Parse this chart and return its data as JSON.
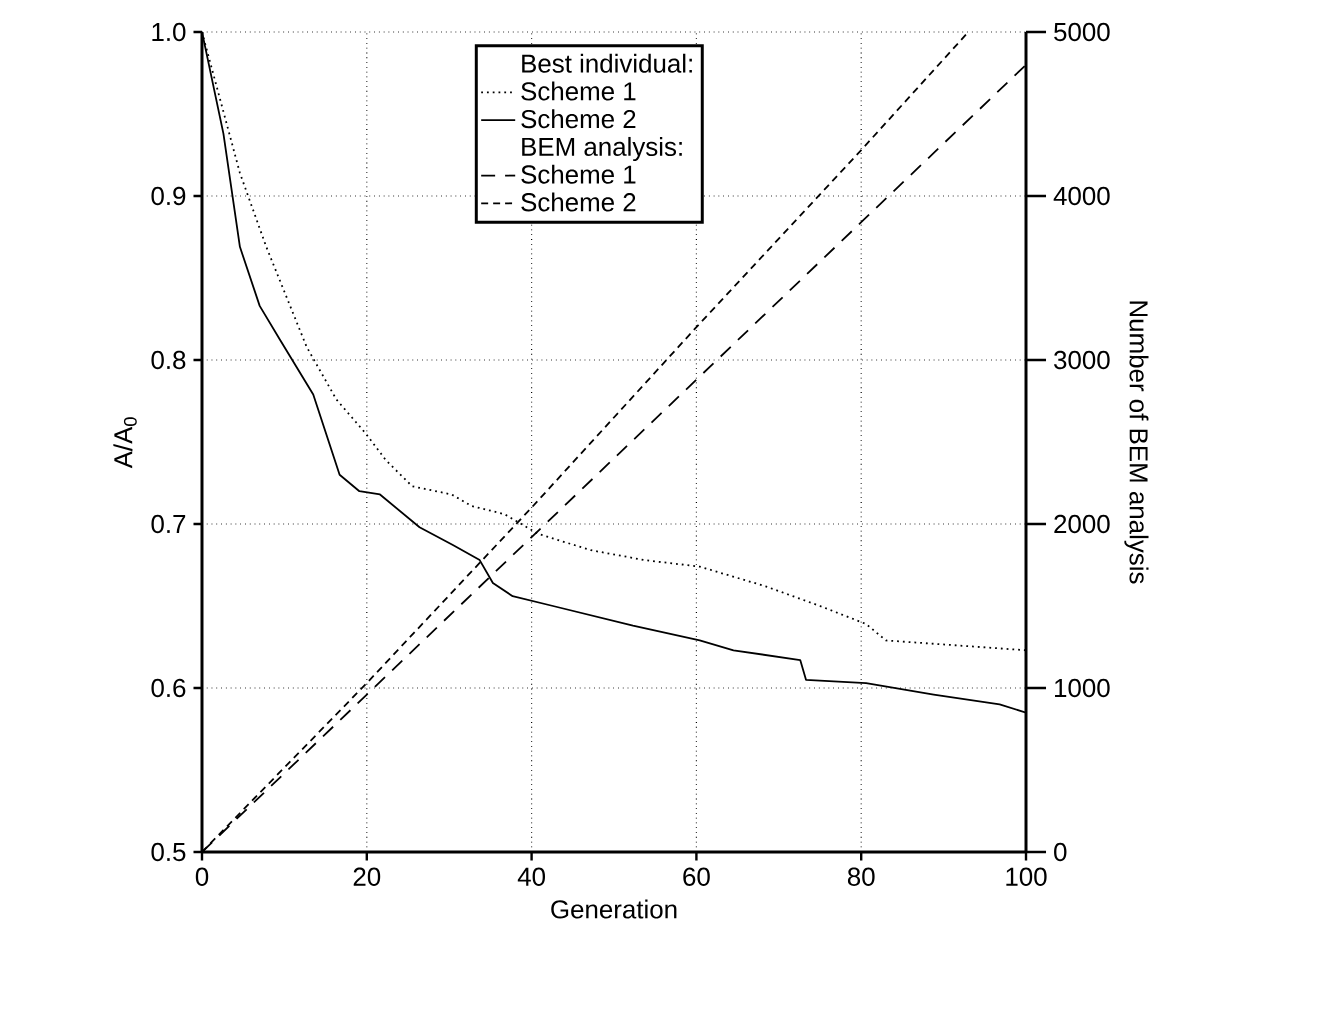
{
  "chart_data": {
    "type": "line",
    "xlabel": "Generation",
    "ylabel": "A/A$_{0}$",
    "y2label": "Number of BEM analysis",
    "annotations": [
      "Best individual:",
      "BEM analysis:"
    ],
    "xlim": [
      0,
      100
    ],
    "xticks": [
      0,
      20,
      40,
      60,
      80,
      100
    ],
    "ylim": [
      0.5,
      1.0
    ],
    "yticks": [
      0.5,
      0.6,
      0.7,
      0.8,
      0.9,
      {
        "value": 1.0,
        "label": "1.0"
      }
    ],
    "y2lim": [
      0,
      5000
    ],
    "y2ticks": [
      0,
      1000,
      2000,
      3000,
      4000,
      5000
    ],
    "grid": true,
    "legend": "top",
    "marker": "none",
    "series": [
      {
        "name": "Scheme 1",
        "color": "#000000",
        "line_style": "dotted",
        "x": [
          0,
          4.6,
          7.8,
          12.7,
          16.3,
          19.9,
          22.3,
          25.5,
          30.3,
          32.7,
          36.7,
          40.8,
          47.2,
          53.7,
          60.4,
          68.4,
          75,
          80.6,
          83,
          94.4,
          100
        ],
        "values": [
          1.0,
          0.914,
          0.869,
          0.808,
          0.776,
          0.755,
          0.739,
          0.723,
          0.718,
          0.711,
          0.706,
          0.694,
          0.684,
          0.678,
          0.674,
          0.662,
          0.65,
          0.639,
          0.629,
          0.625,
          0.623
        ]
      },
      {
        "name": "Scheme 2",
        "color": "#000000",
        "line_style": "solid",
        "x": [
          0,
          2.6,
          4.6,
          7,
          9.5,
          13.5,
          16.7,
          19.1,
          21.6,
          26.4,
          30.5,
          33.7,
          35.3,
          37.7,
          42.6,
          52.3,
          60.4,
          64.5,
          72.6,
          73.3,
          80.6,
          88.8,
          96.8,
          100
        ],
        "values": [
          1.0,
          0.938,
          0.869,
          0.833,
          0.812,
          0.779,
          0.73,
          0.72,
          0.718,
          0.698,
          0.687,
          0.678,
          0.664,
          0.656,
          0.65,
          0.638,
          0.629,
          0.623,
          0.617,
          0.605,
          0.603,
          0.596,
          0.59,
          0.585
        ]
      },
      {
        "name": "Scheme 1",
        "color": "#000000",
        "line_style": "dashed",
        "axis": "y2",
        "x": [
          0,
          20,
          40,
          60,
          80,
          100
        ],
        "values": [
          0,
          960,
          1920,
          2880,
          3840,
          4800
        ]
      },
      {
        "name": "Scheme 2",
        "color": "#000000",
        "line_style": "densely dashed",
        "axis": "y2",
        "x": [
          0,
          20,
          40,
          60,
          80,
          93
        ],
        "values": [
          0,
          1030,
          2100,
          3200,
          4280,
          5000
        ]
      }
    ]
  }
}
